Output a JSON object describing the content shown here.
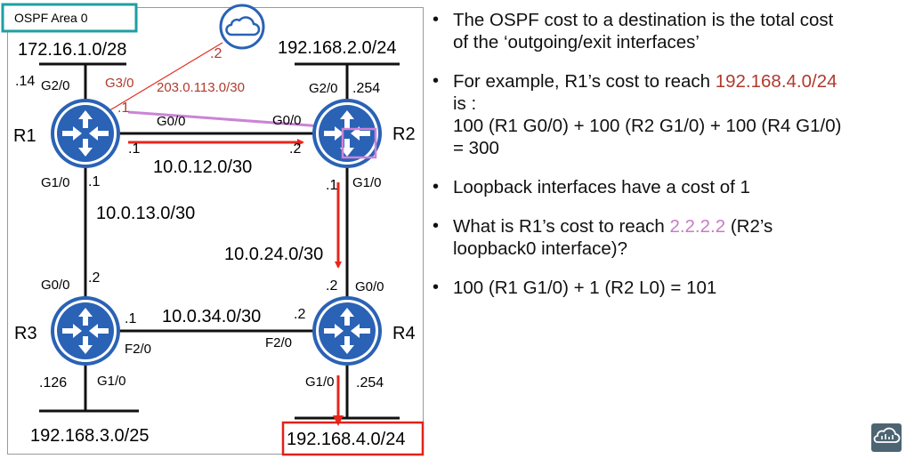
{
  "diagram": {
    "area_label": "OSPF Area 0",
    "routers": {
      "r1": "R1",
      "r2": "R2",
      "r3": "R3",
      "r4": "R4"
    },
    "networks": {
      "lan_r1": "172.16.1.0/28",
      "lan_r2": "192.168.2.0/24",
      "lan_r3": "192.168.3.0/25",
      "lan_r4": "192.168.4.0/24",
      "internet": "203.0.113.0/30",
      "r1_r2": "10.0.12.0/30",
      "r1_r3": "10.0.13.0/30",
      "r2_r4": "10.0.24.0/30",
      "r3_r4": "10.0.34.0/30"
    },
    "interfaces": {
      "r1_g2": "G2/0",
      "r1_g3": "G3/0",
      "r1_g0": "G0/0",
      "r1_g1": "G1/0",
      "r2_g2": "G2/0",
      "r2_g0": "G0/0",
      "r2_g1": "G1/0",
      "r3_g0": "G0/0",
      "r3_f2": "F2/0",
      "r3_g1": "G1/0",
      "r4_g0": "G0/0",
      "r4_f2": "F2/0",
      "r4_g1": "G1/0"
    },
    "hosts": {
      "r1_lan": ".14",
      "cloud": ".2",
      "r1_g3": ".1",
      "r1_g0": ".1",
      "r2_g0": ".2",
      "r2_lan": ".254",
      "r1_g1": ".1",
      "r2_g1": ".1",
      "r3_g0": ".2",
      "r3_f2": ".1",
      "r4_f2": ".2",
      "r4_g0": ".2",
      "r3_lan": ".126",
      "r4_lan": ".254"
    }
  },
  "bullets": [
    {
      "lines": [
        [
          {
            "text": "The OSPF cost to a destination is the total cost",
            "color": ""
          }
        ],
        [
          {
            "text": "of the ‘outgoing/exit interfaces’",
            "color": ""
          }
        ]
      ]
    },
    {
      "lines": [
        [
          {
            "text": "For example, R1’s cost to reach ",
            "color": ""
          },
          {
            "text": "192.168.4.0/24",
            "color": "#b03a2e"
          }
        ],
        [
          {
            "text": "is :",
            "color": ""
          }
        ],
        [
          {
            "text": "100 (R1 G0/0) + 100 (R2 G1/0) + 100 (R4 G1/0)",
            "color": ""
          }
        ],
        [
          {
            "text": "= 300",
            "color": ""
          }
        ]
      ]
    },
    {
      "lines": [
        [
          {
            "text": "Loopback interfaces have a cost of 1",
            "color": ""
          }
        ]
      ]
    },
    {
      "lines": [
        [
          {
            "text": "What is R1’s cost to reach ",
            "color": ""
          },
          {
            "text": "2.2.2.2",
            "color": "#c77bc7"
          },
          {
            "text": " (R2’s",
            "color": ""
          }
        ],
        [
          {
            "text": "loopback0 interface)?",
            "color": ""
          }
        ]
      ]
    },
    {
      "lines": [
        [
          {
            "text": "100 (R1 G1/0) + 1 (R2 L0) = 101",
            "color": ""
          }
        ]
      ]
    }
  ],
  "colors": {
    "router_blue": "#2a62b5",
    "area_border": "#1d9fa0",
    "path_red": "#e8261c",
    "path_violet": "#cc83d6",
    "label_red": "#b03a2e",
    "highlight_box": "#e3201b"
  },
  "icons": {
    "router": "router-icon",
    "cloud": "cloud-icon",
    "logo": "logo-icon"
  }
}
